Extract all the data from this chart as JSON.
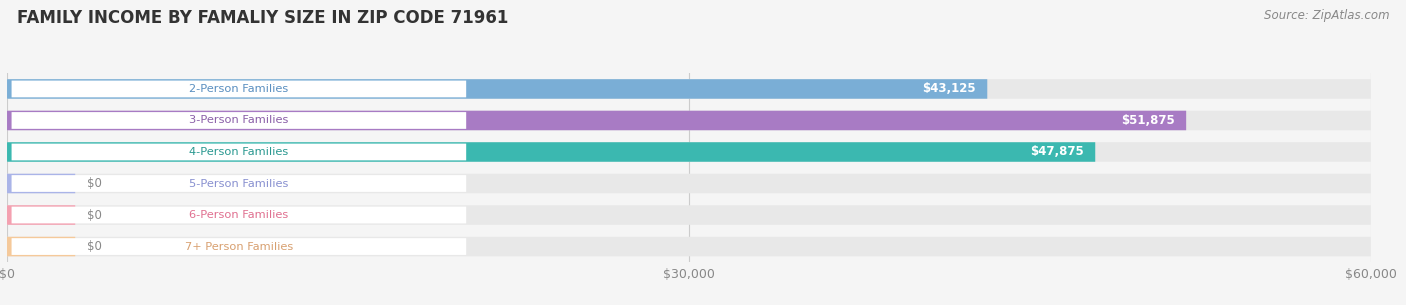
{
  "title": "FAMILY INCOME BY FAMALIY SIZE IN ZIP CODE 71961",
  "source": "Source: ZipAtlas.com",
  "categories": [
    "2-Person Families",
    "3-Person Families",
    "4-Person Families",
    "5-Person Families",
    "6-Person Families",
    "7+ Person Families"
  ],
  "values": [
    43125,
    51875,
    47875,
    0,
    0,
    0
  ],
  "bar_colors": [
    "#7aaed6",
    "#a87bc4",
    "#3bb8b0",
    "#aab4e8",
    "#f4a0b0",
    "#f5c99a"
  ],
  "label_colors": [
    "#5a8fc0",
    "#8a5fa8",
    "#2a9890",
    "#8890d0",
    "#e07090",
    "#d8a070"
  ],
  "xlim": [
    0,
    60000
  ],
  "xtick_labels": [
    "$0",
    "$30,000",
    "$60,000"
  ],
  "value_labels": [
    "$43,125",
    "$51,875",
    "$47,875",
    "$0",
    "$0",
    "$0"
  ],
  "bg_color": "#f5f5f5",
  "bar_bg_color": "#e8e8e8"
}
